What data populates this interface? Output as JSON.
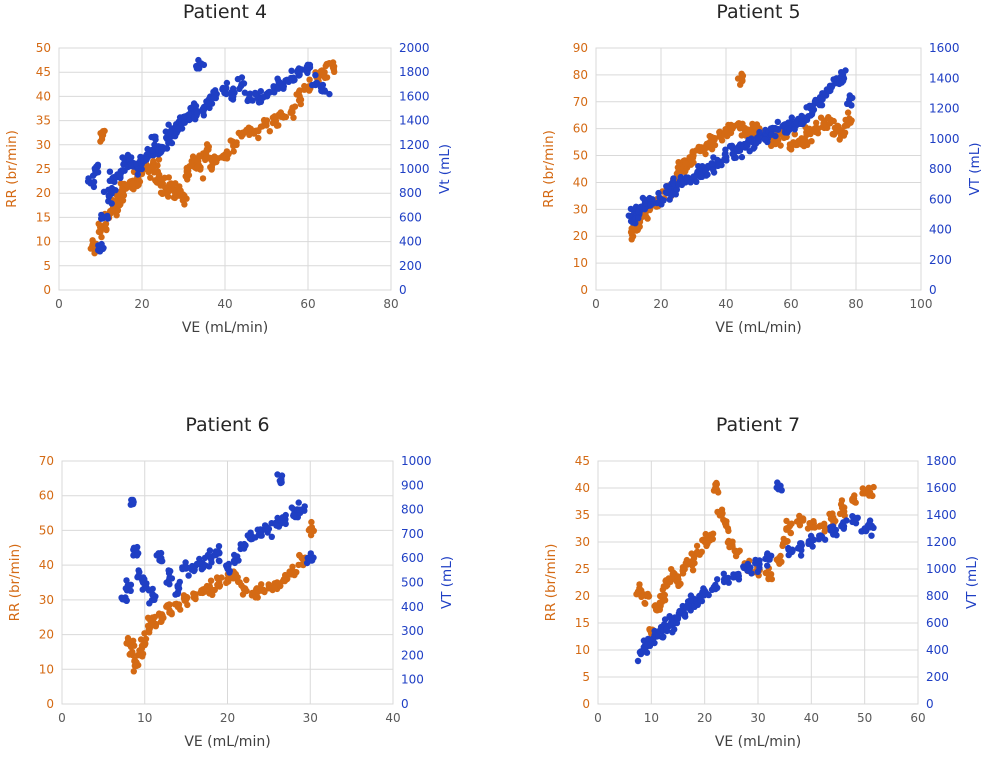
{
  "colors": {
    "rr": "#d46a14",
    "vt": "#1f3fc4",
    "x_text": "#595959"
  },
  "chart_data": [
    {
      "type": "scatter",
      "title": "Patient 4",
      "xlabel": "VE (mL/min)",
      "ylabel": "RR (br/min)",
      "y2label": "Vt (mL)",
      "xlim": [
        0,
        80
      ],
      "ylim": [
        0,
        50
      ],
      "y2lim": [
        0,
        2000
      ],
      "xticks": [
        0,
        20,
        40,
        60,
        80
      ],
      "yticks": [
        0,
        5,
        10,
        15,
        20,
        25,
        30,
        35,
        40,
        45,
        50
      ],
      "y2ticks": [
        0,
        200,
        400,
        600,
        800,
        1000,
        1200,
        1400,
        1600,
        1800,
        2000
      ],
      "grid": true,
      "series": [
        {
          "axis": "left",
          "color": "#d46a14",
          "x": [
            8,
            9,
            10,
            10.5,
            11,
            12,
            13,
            14,
            15,
            16,
            17,
            18,
            19,
            20,
            21,
            22,
            23,
            24,
            25,
            26,
            27,
            28,
            29,
            30,
            31,
            32,
            33,
            34,
            35,
            36,
            37,
            38,
            40,
            42,
            44,
            46,
            48,
            50,
            52,
            54,
            56,
            58,
            60,
            62,
            64,
            66
          ],
          "y": [
            9,
            9,
            12,
            32,
            13,
            15,
            17,
            18,
            20,
            21,
            22,
            22,
            23,
            24,
            25,
            25,
            26,
            23,
            22,
            21,
            22,
            20,
            20,
            19,
            24,
            26,
            27,
            25,
            28,
            29,
            26,
            27,
            28,
            30,
            32,
            33,
            33,
            34,
            35,
            36,
            37,
            40,
            42,
            44,
            45,
            46
          ]
        },
        {
          "axis": "right",
          "color": "#1f3fc4",
          "x": [
            8,
            9,
            10,
            11,
            12,
            13,
            14,
            15,
            16,
            17,
            18,
            19,
            20,
            21,
            22,
            23,
            24,
            25,
            26,
            27,
            28,
            29,
            30,
            31,
            32,
            33,
            34,
            35,
            36,
            38,
            40,
            42,
            44,
            46,
            48,
            50,
            52,
            54,
            56,
            58,
            60,
            62,
            64
          ],
          "y": [
            880,
            1020,
            330,
            600,
            780,
            900,
            940,
            980,
            1040,
            1080,
            1020,
            1000,
            1060,
            1100,
            1140,
            1200,
            1150,
            1180,
            1250,
            1300,
            1320,
            1380,
            1400,
            1420,
            1460,
            1480,
            1860,
            1500,
            1550,
            1620,
            1650,
            1600,
            1700,
            1580,
            1600,
            1620,
            1680,
            1700,
            1750,
            1800,
            1820,
            1700,
            1650
          ]
        }
      ]
    },
    {
      "type": "scatter",
      "title": "Patient 5",
      "xlabel": "VE (mL/min)",
      "ylabel": "RR (br/min)",
      "y2label": "VT (mL)",
      "xlim": [
        0,
        100
      ],
      "ylim": [
        0,
        90
      ],
      "y2lim": [
        0,
        1600
      ],
      "xticks": [
        0,
        20,
        40,
        60,
        80,
        100
      ],
      "yticks": [
        0,
        10,
        20,
        30,
        40,
        50,
        60,
        70,
        80,
        90
      ],
      "y2ticks": [
        0,
        200,
        400,
        600,
        800,
        1000,
        1200,
        1400,
        1600
      ],
      "grid": true,
      "series": [
        {
          "axis": "left",
          "color": "#d46a14",
          "x": [
            11,
            12,
            13,
            14,
            16,
            18,
            20,
            22,
            24,
            25,
            26,
            27,
            28,
            30,
            32,
            34,
            35,
            36,
            38,
            40,
            42,
            44,
            45,
            46,
            48,
            50,
            52,
            54,
            56,
            58,
            60,
            62,
            64,
            66,
            68,
            70,
            72,
            74,
            76,
            78
          ],
          "y": [
            22,
            23,
            25,
            27,
            30,
            32,
            34,
            37,
            40,
            42,
            45,
            46,
            48,
            50,
            52,
            54,
            55,
            56,
            57,
            58,
            60,
            62,
            78,
            58,
            60,
            60,
            57,
            55,
            56,
            58,
            54,
            55,
            56,
            58,
            60,
            62,
            62,
            60,
            58,
            63
          ]
        },
        {
          "axis": "right",
          "color": "#1f3fc4",
          "x": [
            11,
            12,
            13,
            14,
            15,
            17,
            20,
            22,
            24,
            26,
            28,
            30,
            32,
            34,
            36,
            38,
            40,
            42,
            44,
            46,
            48,
            50,
            52,
            54,
            56,
            58,
            60,
            62,
            64,
            66,
            68,
            70,
            72,
            74,
            76,
            78
          ],
          "y": [
            470,
            500,
            520,
            550,
            570,
            580,
            600,
            640,
            680,
            700,
            720,
            750,
            780,
            800,
            820,
            850,
            880,
            900,
            920,
            950,
            980,
            1000,
            1020,
            1040,
            1060,
            1080,
            1100,
            1120,
            1140,
            1200,
            1250,
            1300,
            1350,
            1400,
            1420,
            1260
          ]
        }
      ]
    },
    {
      "type": "scatter",
      "title": "Patient 6",
      "xlabel": "VE (mL/min)",
      "ylabel": "RR (br/min)",
      "y2label": "VT (mL)",
      "xlim": [
        0,
        40
      ],
      "ylim": [
        0,
        70
      ],
      "y2lim": [
        0,
        1000
      ],
      "xticks": [
        0,
        10,
        20,
        30,
        40
      ],
      "yticks": [
        0,
        10,
        20,
        30,
        40,
        50,
        60,
        70
      ],
      "y2ticks": [
        0,
        100,
        200,
        300,
        400,
        500,
        600,
        700,
        800,
        900,
        1000
      ],
      "grid": true,
      "series": [
        {
          "axis": "left",
          "color": "#d46a14",
          "x": [
            8,
            8.5,
            9,
            9.5,
            10,
            10.5,
            11,
            12,
            13,
            14,
            15,
            16,
            17,
            18,
            19,
            20,
            21,
            22,
            23,
            24,
            25,
            26,
            27,
            28,
            29,
            30
          ],
          "y": [
            18,
            15,
            11,
            14,
            17,
            22,
            24,
            25,
            27,
            28,
            30,
            31,
            32,
            33,
            35,
            36,
            37,
            33,
            32,
            33,
            34,
            35,
            36,
            38,
            42,
            50
          ]
        },
        {
          "axis": "right",
          "color": "#1f3fc4",
          "x": [
            7.5,
            8,
            8.5,
            9,
            9.5,
            10,
            11,
            12,
            13,
            14,
            15,
            16,
            17,
            18,
            19,
            20,
            21,
            22,
            23,
            24,
            25,
            26,
            26.5,
            27,
            28,
            29,
            30
          ],
          "y": [
            430,
            480,
            830,
            620,
            520,
            480,
            450,
            600,
            520,
            480,
            560,
            560,
            580,
            600,
            620,
            560,
            600,
            640,
            680,
            700,
            720,
            740,
            920,
            760,
            780,
            800,
            600
          ]
        }
      ]
    },
    {
      "type": "scatter",
      "title": "Patient 7",
      "xlabel": "VE (mL/min)",
      "ylabel": "RR (br/min)",
      "y2label": "VT (mL)",
      "xlim": [
        0,
        60
      ],
      "ylim": [
        0,
        45
      ],
      "y2lim": [
        0,
        1800
      ],
      "xticks": [
        0,
        10,
        20,
        30,
        40,
        50,
        60
      ],
      "yticks": [
        0,
        5,
        10,
        15,
        20,
        25,
        30,
        35,
        40,
        45
      ],
      "y2ticks": [
        0,
        200,
        400,
        600,
        800,
        1000,
        1200,
        1400,
        1600,
        1800
      ],
      "grid": true,
      "series": [
        {
          "axis": "left",
          "color": "#d46a14",
          "x": [
            8,
            9,
            10,
            11,
            12,
            13,
            14,
            15,
            16,
            17,
            18,
            19,
            20,
            21,
            22,
            23,
            24,
            25,
            26,
            28,
            30,
            32,
            34,
            35,
            36,
            38,
            40,
            42,
            44,
            46,
            48,
            50,
            51
          ],
          "y": [
            21,
            20,
            13,
            18,
            20,
            22,
            24,
            23,
            25,
            26,
            27,
            28,
            30,
            31,
            40,
            35,
            33,
            30,
            28,
            26,
            25,
            24,
            27,
            30,
            33,
            34,
            33,
            33,
            34,
            36,
            38,
            39,
            39
          ]
        },
        {
          "axis": "right",
          "color": "#1f3fc4",
          "x": [
            8,
            9,
            10,
            11,
            12,
            13,
            14,
            15,
            16,
            17,
            18,
            19,
            20,
            22,
            24,
            26,
            28,
            30,
            32,
            34,
            36,
            38,
            40,
            42,
            44,
            46,
            48,
            50,
            51
          ],
          "y": [
            380,
            420,
            460,
            500,
            540,
            580,
            600,
            640,
            680,
            720,
            760,
            800,
            840,
            880,
            920,
            960,
            1000,
            1040,
            1080,
            1620,
            1140,
            1160,
            1200,
            1240,
            1280,
            1320,
            1380,
            1300,
            1310
          ]
        }
      ]
    }
  ]
}
